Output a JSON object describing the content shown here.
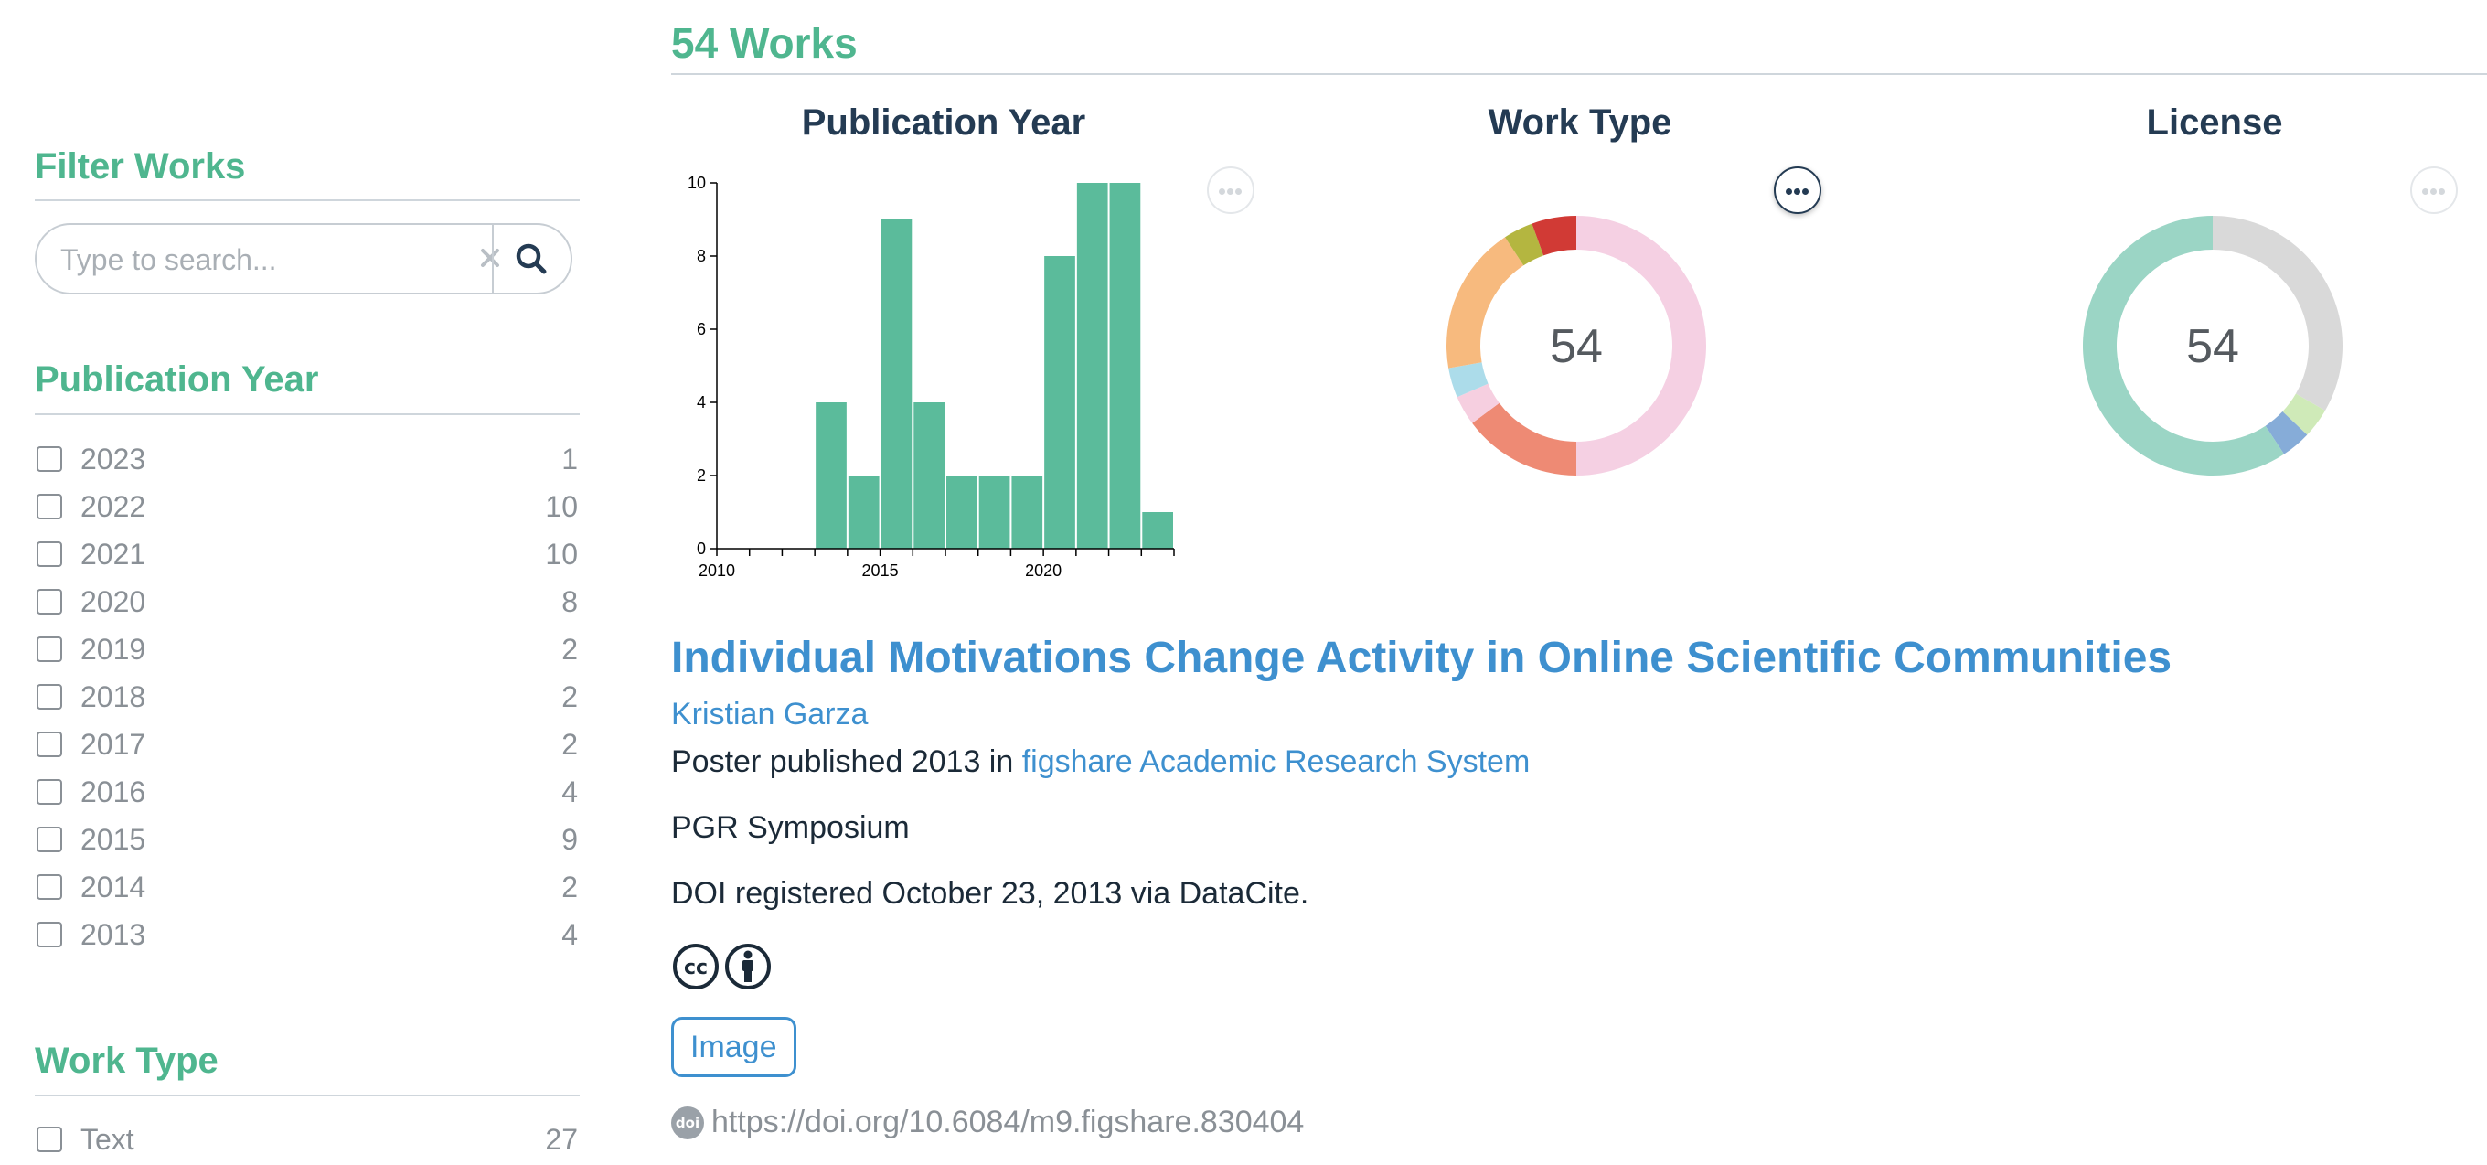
{
  "sidebar": {
    "filter_heading": "Filter Works",
    "search_placeholder": "Type to search...",
    "publication_year_heading": "Publication Year",
    "publication_years": [
      {
        "label": "2023",
        "count": "1"
      },
      {
        "label": "2022",
        "count": "10"
      },
      {
        "label": "2021",
        "count": "10"
      },
      {
        "label": "2020",
        "count": "8"
      },
      {
        "label": "2019",
        "count": "2"
      },
      {
        "label": "2018",
        "count": "2"
      },
      {
        "label": "2017",
        "count": "2"
      },
      {
        "label": "2016",
        "count": "4"
      },
      {
        "label": "2015",
        "count": "9"
      },
      {
        "label": "2014",
        "count": "2"
      },
      {
        "label": "2013",
        "count": "4"
      }
    ],
    "work_type_heading": "Work Type",
    "work_types": [
      {
        "label": "Text",
        "count": "27"
      }
    ]
  },
  "main": {
    "works_count_title": "54 Works"
  },
  "charts": {
    "publication_year_title": "Publication Year",
    "work_type_title": "Work Type",
    "license_title": "License",
    "work_type_total": "54",
    "license_total": "54"
  },
  "chart_data": [
    {
      "type": "bar",
      "title": "Publication Year",
      "x": [
        2013,
        2014,
        2015,
        2016,
        2017,
        2018,
        2019,
        2020,
        2021,
        2022,
        2023
      ],
      "values": [
        4,
        2,
        9,
        4,
        2,
        2,
        2,
        8,
        10,
        10,
        1
      ],
      "xlim": [
        2010,
        2024
      ],
      "x_ticks": [
        "2010",
        "2015",
        "2020"
      ],
      "ylim": [
        0,
        10
      ],
      "y_ticks": [
        "0",
        "2",
        "4",
        "6",
        "8",
        "10"
      ],
      "color": "#5bbb9b"
    },
    {
      "type": "pie",
      "title": "Work Type",
      "total_label": "54",
      "slices": [
        {
          "value": 27,
          "color": "#f5d0e3"
        },
        {
          "value": 8,
          "color": "#ee8a74"
        },
        {
          "value": 2,
          "color": "#f6cfe0"
        },
        {
          "value": 2,
          "color": "#acdcea"
        },
        {
          "value": 10,
          "color": "#f7ba7e"
        },
        {
          "value": 2,
          "color": "#b4b640"
        },
        {
          "value": 3,
          "color": "#d13a35"
        }
      ]
    },
    {
      "type": "pie",
      "title": "License",
      "total_label": "54",
      "slices": [
        {
          "value": 18,
          "color": "#d9d9d9"
        },
        {
          "value": 2,
          "color": "#cfeab8"
        },
        {
          "value": 2,
          "color": "#86acd8"
        },
        {
          "value": 32,
          "color": "#9bd5c5"
        }
      ]
    }
  ],
  "work": {
    "title": "Individual Motivations Change Activity in Online Scientific Communities",
    "author": "Kristian Garza",
    "published_prefix": "Poster published 2013 in ",
    "publisher": "figshare Academic Research System",
    "description": "PGR Symposium",
    "doi_registered": "DOI registered October 23, 2013 via DataCite.",
    "type_tag": "Image",
    "doi_badge": "doi",
    "doi_url": "https://doi.org/10.6084/m9.figshare.830404"
  },
  "colors": {
    "accent_green": "#4fb68f",
    "link_blue": "#3e90cf",
    "heading_dark": "#243b53",
    "muted_gray": "#8a9096"
  }
}
